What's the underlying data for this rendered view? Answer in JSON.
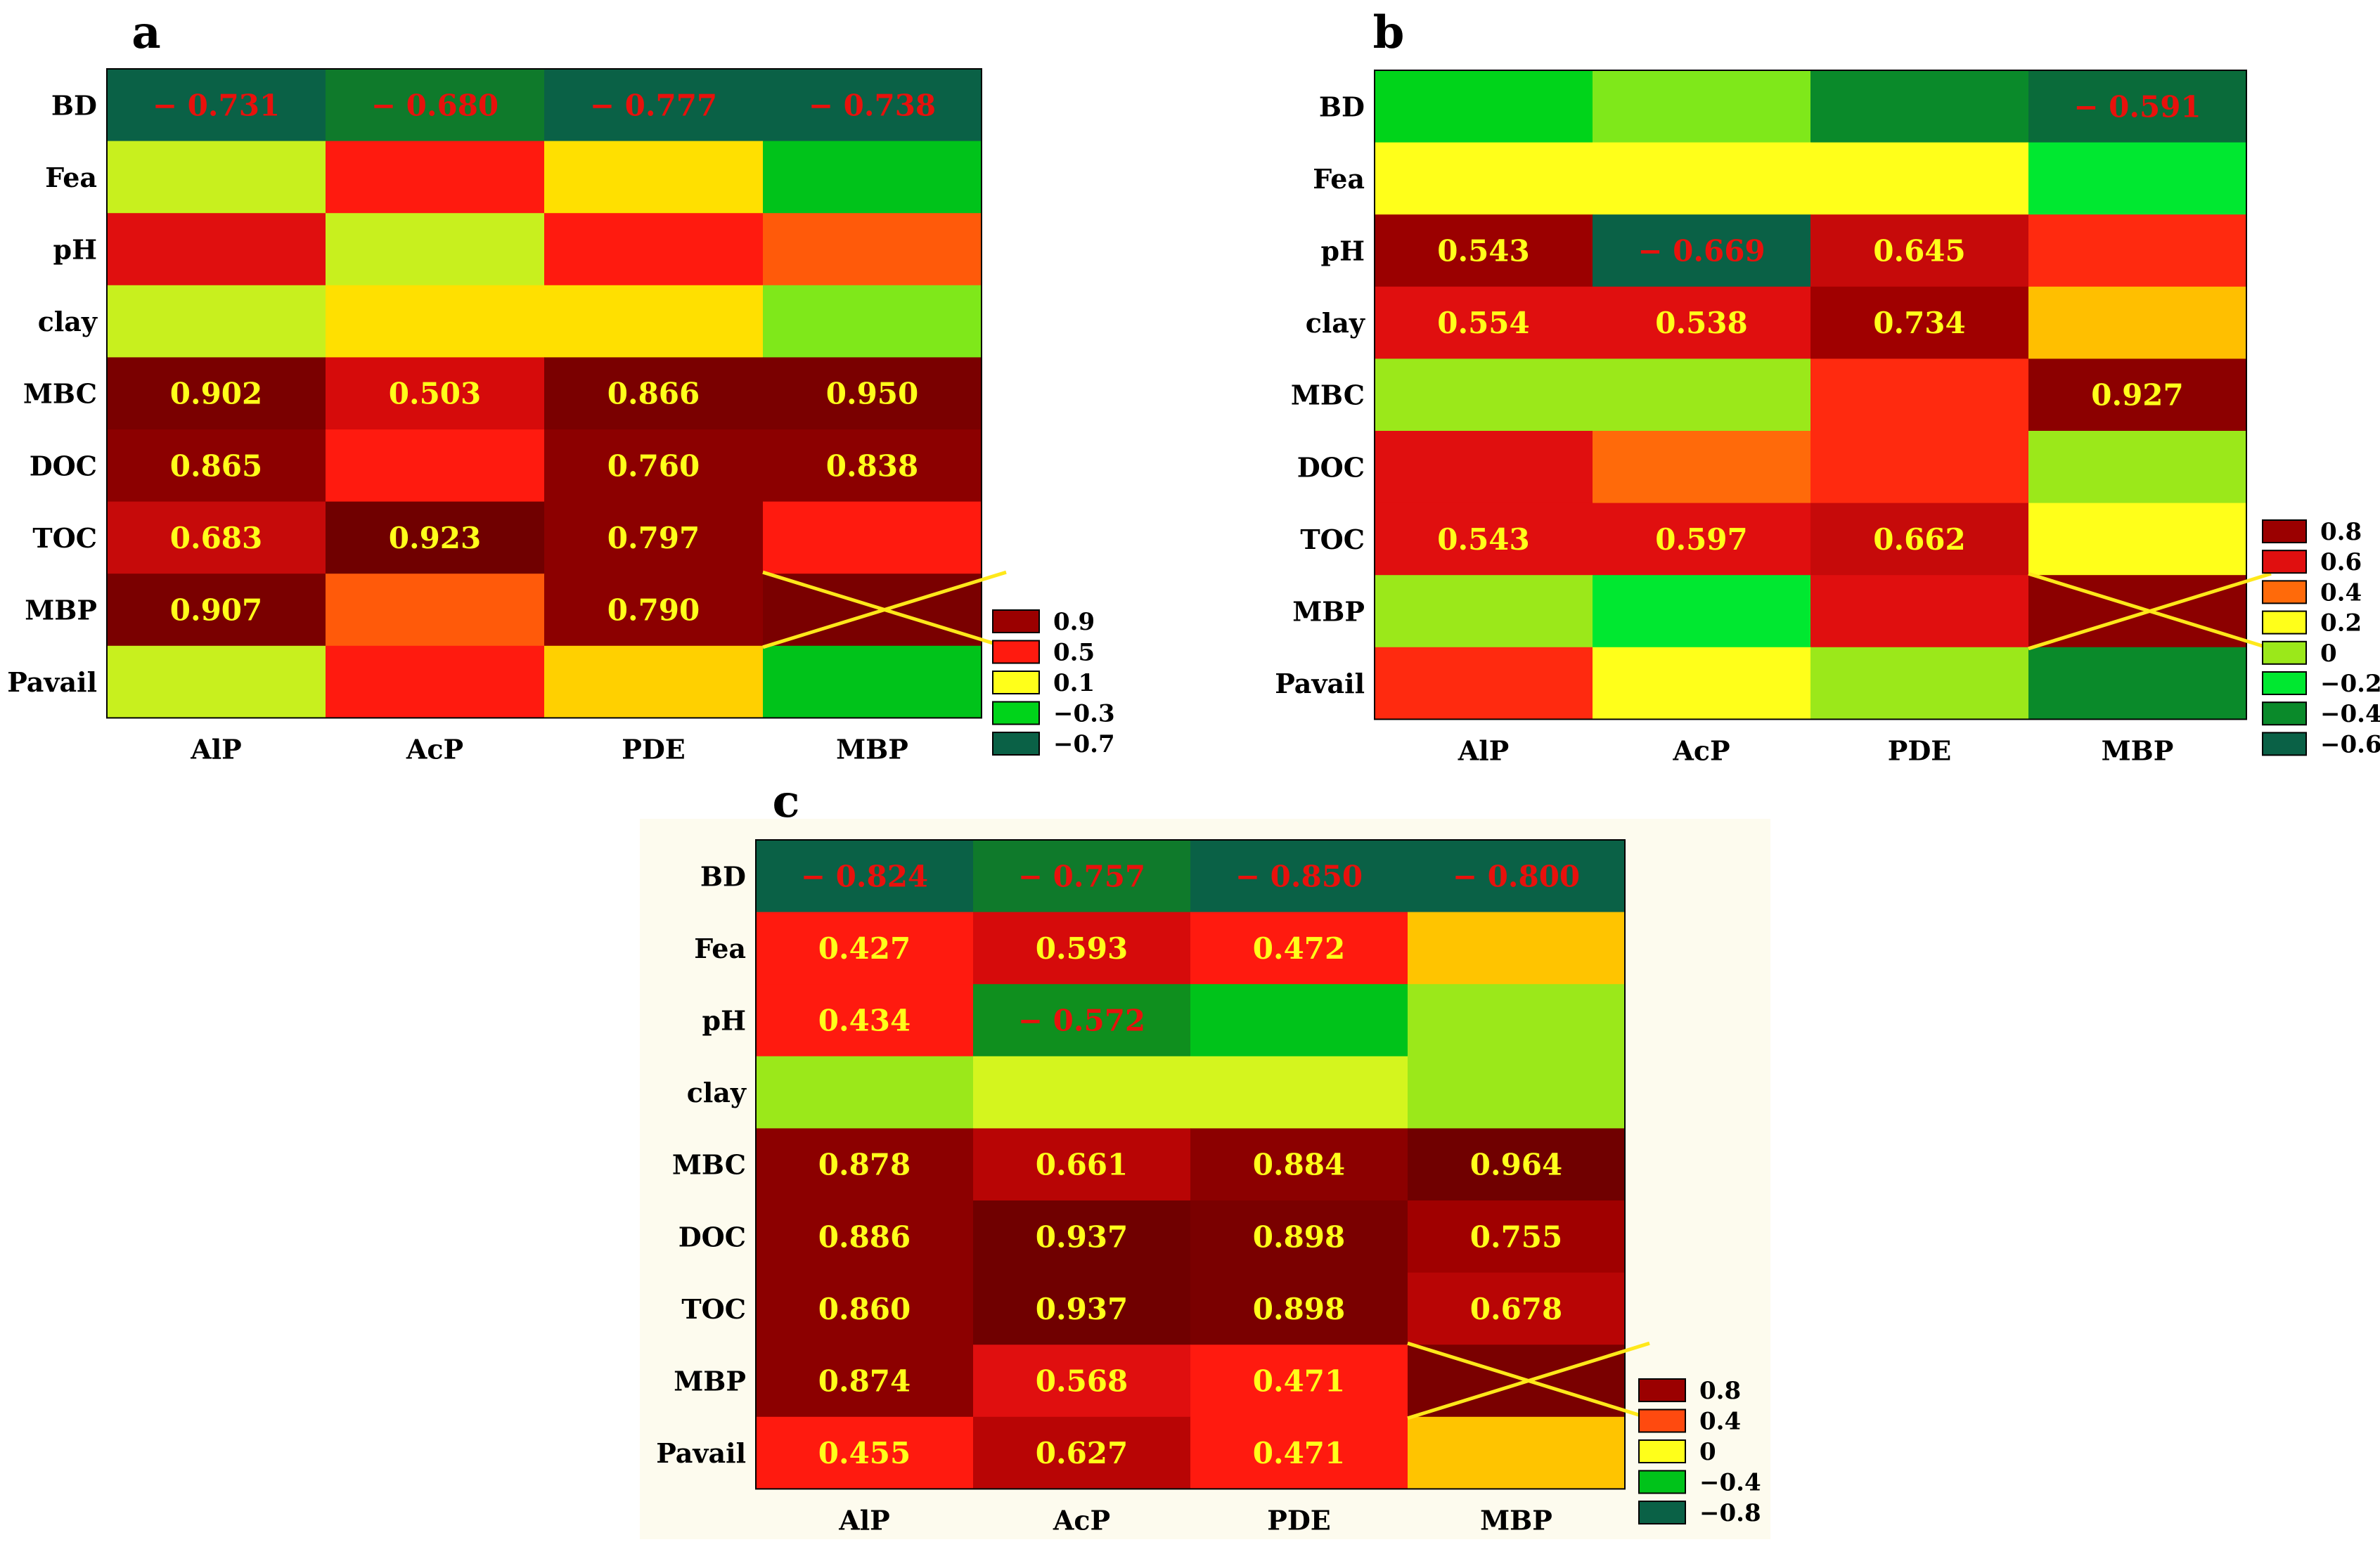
{
  "chart_data": [
    {
      "type": "heatmap",
      "panel_label": "a",
      "rows": [
        "BD",
        "Fea",
        "pH",
        "clay",
        "MBC",
        "DOC",
        "TOC",
        "MBP",
        "Pavail"
      ],
      "columns": [
        "AlP",
        "AcP",
        "PDE",
        "MBP"
      ],
      "cell_colors": [
        [
          "#0a6146",
          "#0f7a2b",
          "#0a6146",
          "#0a6146"
        ],
        [
          "#c8f01e",
          "#ff1a0f",
          "#ffe000",
          "#00c31a"
        ],
        [
          "#e00f0f",
          "#c8f01e",
          "#ff1a0f",
          "#ff5a0a"
        ],
        [
          "#c8f01e",
          "#ffe000",
          "#ffe000",
          "#7fe81a"
        ],
        [
          "#7a0000",
          "#d60b0b",
          "#7a0000",
          "#7a0000"
        ],
        [
          "#8c0000",
          "#ff1a0f",
          "#8c0000",
          "#8c0000"
        ],
        [
          "#c60a0a",
          "#700000",
          "#8c0000",
          "#ff1a0f"
        ],
        [
          "#7a0000",
          "#ff5a0a",
          "#8c0000",
          "#7a0000"
        ],
        [
          "#c8f01e",
          "#ff1a0f",
          "#ffd000",
          "#00c31a"
        ]
      ],
      "labels": [
        [
          "− 0.731",
          "− 0.680",
          "− 0.777",
          "− 0.738"
        ],
        [
          "",
          "",
          "",
          ""
        ],
        [
          "",
          "",
          "",
          ""
        ],
        [
          "",
          "",
          "",
          ""
        ],
        [
          "0.902",
          "0.503",
          "0.866",
          "0.950"
        ],
        [
          "0.865",
          "",
          "0.760",
          "0.838"
        ],
        [
          "0.683",
          "0.923",
          "0.797",
          ""
        ],
        [
          "0.907",
          "",
          "0.790",
          ""
        ],
        [
          "",
          "",
          "",
          ""
        ]
      ],
      "crossed_cell": [
        "MBP",
        "MBP"
      ],
      "legend": [
        {
          "label": "0.9",
          "color": "#9b0000"
        },
        {
          "label": "0.5",
          "color": "#ff1a0f"
        },
        {
          "label": "0.1",
          "color": "#ffff1a"
        },
        {
          "label": "−0.3",
          "color": "#00d41a"
        },
        {
          "label": "−0.7",
          "color": "#0a6146"
        }
      ]
    },
    {
      "type": "heatmap",
      "panel_label": "b",
      "rows": [
        "BD",
        "Fea",
        "pH",
        "clay",
        "MBC",
        "DOC",
        "TOC",
        "MBP",
        "Pavail"
      ],
      "columns": [
        "AlP",
        "AcP",
        "PDE",
        "MBP"
      ],
      "cell_colors": [
        [
          "#00d41a",
          "#7fe81a",
          "#0a8a2a",
          "#0a6b3a"
        ],
        [
          "#ffff1a",
          "#ffff1a",
          "#ffff1a",
          "#00e830"
        ],
        [
          "#9b0000",
          "#0a6146",
          "#c60a0a",
          "#ff2a0f"
        ],
        [
          "#e00f0f",
          "#e00f0f",
          "#a00000",
          "#ffbf00"
        ],
        [
          "#9be81a",
          "#9be81a",
          "#ff2a0f",
          "#8c0000"
        ],
        [
          "#e00f0f",
          "#ff6a0a",
          "#ff2a0f",
          "#9be81a"
        ],
        [
          "#e00f0f",
          "#e00f0f",
          "#c60a0a",
          "#ffff1a"
        ],
        [
          "#9be81a",
          "#00e830",
          "#e00f0f",
          "#8c0000"
        ],
        [
          "#ff2a0f",
          "#ffff1a",
          "#9be81a",
          "#0a8a2a"
        ]
      ],
      "labels": [
        [
          "",
          "",
          "",
          "− 0.591"
        ],
        [
          "",
          "",
          "",
          ""
        ],
        [
          "0.543",
          "− 0.669",
          "0.645",
          ""
        ],
        [
          "0.554",
          "0.538",
          "0.734",
          ""
        ],
        [
          "",
          "",
          "",
          "0.927"
        ],
        [
          "",
          "",
          "",
          ""
        ],
        [
          "0.543",
          "0.597",
          "0.662",
          ""
        ],
        [
          "",
          "",
          "",
          ""
        ],
        [
          "",
          "",
          "",
          ""
        ]
      ],
      "crossed_cell": [
        "MBP",
        "MBP"
      ],
      "legend": [
        {
          "label": "0.8",
          "color": "#9b0000"
        },
        {
          "label": "0.6",
          "color": "#e00f0f"
        },
        {
          "label": "0.4",
          "color": "#ff6a0a"
        },
        {
          "label": "0.2",
          "color": "#ffff1a"
        },
        {
          "label": "0",
          "color": "#9be81a"
        },
        {
          "label": "−0.2",
          "color": "#00e830"
        },
        {
          "label": "−0.4",
          "color": "#0a8a2a"
        },
        {
          "label": "−0.6",
          "color": "#0a6146"
        }
      ]
    },
    {
      "type": "heatmap",
      "panel_label": "c",
      "rows": [
        "BD",
        "Fea",
        "pH",
        "clay",
        "MBC",
        "DOC",
        "TOC",
        "MBP",
        "Pavail"
      ],
      "columns": [
        "AlP",
        "AcP",
        "PDE",
        "MBP"
      ],
      "cell_colors": [
        [
          "#0a6146",
          "#0f7a2b",
          "#0a6146",
          "#0a6146"
        ],
        [
          "#ff1a0f",
          "#d60b0b",
          "#ff1a0f",
          "#ffc400"
        ],
        [
          "#ff1a0f",
          "#0f8f1e",
          "#00c31a",
          "#9be81a"
        ],
        [
          "#9be81a",
          "#d4f51e",
          "#d4f51e",
          "#9be81a"
        ],
        [
          "#8c0000",
          "#b80505",
          "#8c0000",
          "#700000"
        ],
        [
          "#8c0000",
          "#700000",
          "#7a0000",
          "#a00000"
        ],
        [
          "#8c0000",
          "#700000",
          "#7a0000",
          "#b80505"
        ],
        [
          "#8c0000",
          "#e00f0f",
          "#ff1a0f",
          "#7a0000"
        ],
        [
          "#ff1a0f",
          "#b80505",
          "#ff1a0f",
          "#ffc400"
        ]
      ],
      "labels": [
        [
          "− 0.824",
          "− 0.757",
          "− 0.850",
          "− 0.800"
        ],
        [
          "0.427",
          "0.593",
          "0.472",
          ""
        ],
        [
          "0.434",
          "− 0.572",
          "",
          ""
        ],
        [
          "",
          "",
          "",
          ""
        ],
        [
          "0.878",
          "0.661",
          "0.884",
          "0.964"
        ],
        [
          "0.886",
          "0.937",
          "0.898",
          "0.755"
        ],
        [
          "0.860",
          "0.937",
          "0.898",
          "0.678"
        ],
        [
          "0.874",
          "0.568",
          "0.471",
          ""
        ],
        [
          "0.455",
          "0.627",
          "0.471",
          ""
        ]
      ],
      "crossed_cell": [
        "MBP",
        "MBP"
      ],
      "legend": [
        {
          "label": "0.8",
          "color": "#9b0000"
        },
        {
          "label": "0.4",
          "color": "#ff4a0f"
        },
        {
          "label": "0",
          "color": "#ffff1a"
        },
        {
          "label": "−0.4",
          "color": "#00c31a"
        },
        {
          "label": "−0.8",
          "color": "#0a6146"
        }
      ]
    }
  ],
  "colors": {
    "positive_label": "#ffff1a",
    "negative_label": "#e8110c",
    "cross": "#ffe81a",
    "panel_c_background": "#fdfbee",
    "text": "#000000"
  }
}
